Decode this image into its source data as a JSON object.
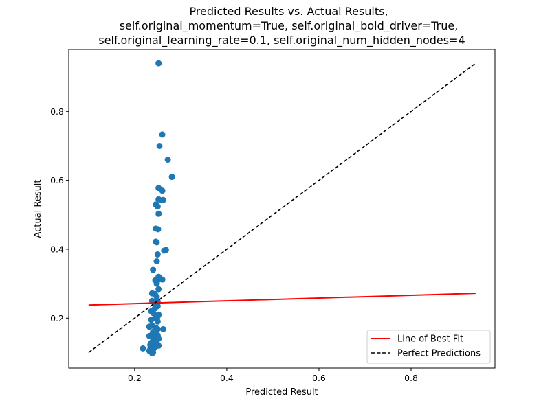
{
  "chart_data": {
    "type": "scatter",
    "title": [
      "Predicted Results vs. Actual Results,",
      "self.original_momentum=True, self.original_bold_driver=True,",
      "self.original_learning_rate=0.1, self.original_num_hidden_nodes=4"
    ],
    "xlabel": "Predicted Result",
    "ylabel": "Actual Result",
    "xlim": [
      0.057,
      0.982
    ],
    "ylim": [
      0.055,
      0.98
    ],
    "xticks": [
      0.2,
      0.4,
      0.6,
      0.8
    ],
    "yticks": [
      0.2,
      0.4,
      0.6,
      0.8
    ],
    "xtick_labels": [
      "0.2",
      "0.4",
      "0.6",
      "0.8"
    ],
    "ytick_labels": [
      "0.2",
      "0.4",
      "0.6",
      "0.8"
    ],
    "grid": false,
    "legend_position": "bottom-right",
    "series": [
      {
        "name": "",
        "kind": "scatter",
        "color": "#1f77b4",
        "x": [
          0.252,
          0.26,
          0.254,
          0.272,
          0.281,
          0.252,
          0.26,
          0.252,
          0.262,
          0.258,
          0.246,
          0.25,
          0.252,
          0.246,
          0.251,
          0.246,
          0.248,
          0.268,
          0.264,
          0.25,
          0.248,
          0.24,
          0.245,
          0.26,
          0.252,
          0.25,
          0.238,
          0.248,
          0.252,
          0.244,
          0.248,
          0.238,
          0.25,
          0.246,
          0.244,
          0.25,
          0.236,
          0.244,
          0.252,
          0.24,
          0.25,
          0.236,
          0.244,
          0.25,
          0.238,
          0.232,
          0.246,
          0.25,
          0.262,
          0.24,
          0.246,
          0.236,
          0.25,
          0.232,
          0.244,
          0.252,
          0.24,
          0.236,
          0.248,
          0.234,
          0.24,
          0.252,
          0.236,
          0.244,
          0.218,
          0.234,
          0.24,
          0.232,
          0.236,
          0.24,
          0.238
        ],
        "y": [
          0.94,
          0.733,
          0.7,
          0.66,
          0.61,
          0.578,
          0.57,
          0.545,
          0.543,
          0.542,
          0.53,
          0.524,
          0.503,
          0.46,
          0.458,
          0.422,
          0.42,
          0.398,
          0.396,
          0.385,
          0.365,
          0.34,
          0.31,
          0.312,
          0.32,
          0.31,
          0.272,
          0.3,
          0.284,
          0.27,
          0.262,
          0.25,
          0.248,
          0.245,
          0.24,
          0.235,
          0.22,
          0.228,
          0.21,
          0.215,
          0.205,
          0.195,
          0.2,
          0.19,
          0.178,
          0.175,
          0.172,
          0.168,
          0.168,
          0.16,
          0.155,
          0.15,
          0.15,
          0.148,
          0.145,
          0.14,
          0.135,
          0.128,
          0.128,
          0.122,
          0.12,
          0.12,
          0.118,
          0.115,
          0.112,
          0.11,
          0.108,
          0.105,
          0.102,
          0.1,
          0.098
        ]
      },
      {
        "name": "Line of Best Fit",
        "kind": "line",
        "color": "#ff0000",
        "style": "solid",
        "x": [
          0.1,
          0.94
        ],
        "y": [
          0.238,
          0.272
        ]
      },
      {
        "name": "Perfect Predictions",
        "kind": "line",
        "color": "#000000",
        "style": "dashed",
        "x": [
          0.1,
          0.94
        ],
        "y": [
          0.1,
          0.94
        ]
      }
    ]
  }
}
